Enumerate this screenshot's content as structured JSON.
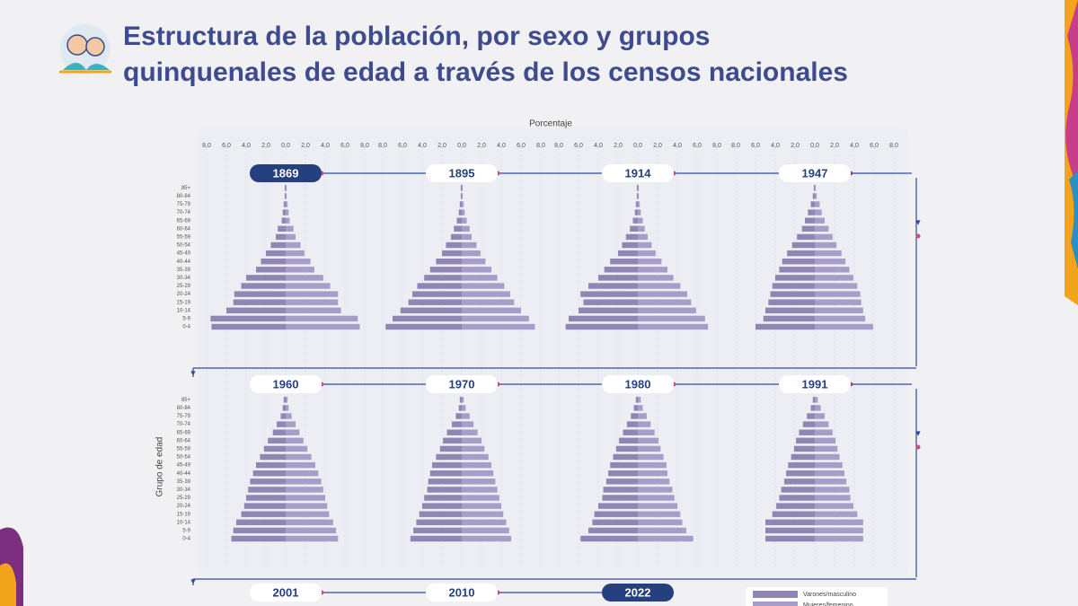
{
  "chart_data": {
    "type": "population-pyramid",
    "title": [
      "Estructura de la población, por sexo y grupos",
      "quinquenales de edad a través de los censos nacionales"
    ],
    "xlabel": "Porcentaje",
    "ylabel": "Grupo de edad",
    "categories": [
      "0-4",
      "5-9",
      "10-14",
      "15-19",
      "20-24",
      "25-29",
      "30-34",
      "35-39",
      "40-44",
      "45-49",
      "50-54",
      "55-59",
      "60-64",
      "65-69",
      "70-74",
      "75-79",
      "80-84",
      "85+"
    ],
    "xlim": [
      -8,
      8
    ],
    "xticks": [
      {
        "value": -8,
        "label": "8,0"
      },
      {
        "value": -6,
        "label": "6,0"
      },
      {
        "value": -4,
        "label": "4,0"
      },
      {
        "value": -2,
        "label": "2,0"
      },
      {
        "value": 0,
        "label": "0,0"
      },
      {
        "value": 2,
        "label": "2,0"
      },
      {
        "value": 4,
        "label": "4,0"
      },
      {
        "value": 6,
        "label": "6,0"
      },
      {
        "value": 8,
        "label": "8,0"
      }
    ],
    "grid": true,
    "series": [
      {
        "name": "Varones/masculino",
        "color": "#8f86b4"
      },
      {
        "name": "Mujeres/femenino",
        "color": "#a79dc9"
      }
    ],
    "panels": [
      {
        "title": "1869",
        "values": [
          [
            7.5,
            7.6,
            6.0,
            5.3,
            5.2,
            4.5,
            4.0,
            3.0,
            2.5,
            2.0,
            1.5,
            1.0,
            0.8,
            0.4,
            0.3,
            0.2,
            0.1,
            0.1
          ],
          [
            7.5,
            7.3,
            5.6,
            5.3,
            5.3,
            4.5,
            3.8,
            2.9,
            2.5,
            1.9,
            1.5,
            1.0,
            0.8,
            0.4,
            0.3,
            0.2,
            0.1,
            0.1
          ]
        ]
      },
      {
        "title": "1895",
        "values": [
          [
            7.7,
            7.0,
            6.2,
            5.4,
            5.0,
            4.5,
            3.8,
            3.2,
            2.6,
            2.0,
            1.6,
            1.1,
            0.8,
            0.5,
            0.3,
            0.2,
            0.1,
            0.1
          ],
          [
            7.4,
            6.8,
            6.0,
            5.3,
            4.9,
            4.3,
            3.6,
            3.0,
            2.4,
            1.9,
            1.5,
            1.0,
            0.8,
            0.5,
            0.3,
            0.2,
            0.1,
            0.1
          ]
        ]
      },
      {
        "title": "1914",
        "values": [
          [
            7.3,
            7.0,
            6.0,
            5.5,
            5.8,
            5.0,
            4.0,
            3.4,
            2.8,
            2.0,
            1.6,
            1.2,
            0.8,
            0.5,
            0.3,
            0.2,
            0.1,
            0.1
          ],
          [
            7.1,
            6.8,
            5.9,
            5.4,
            5.0,
            4.3,
            3.6,
            3.0,
            2.4,
            1.8,
            1.4,
            1.0,
            0.7,
            0.5,
            0.3,
            0.2,
            0.1,
            0.1
          ]
        ]
      },
      {
        "title": "1947",
        "values": [
          [
            6.0,
            5.2,
            5.0,
            4.7,
            4.5,
            4.3,
            4.0,
            3.6,
            3.3,
            2.8,
            2.3,
            1.8,
            1.3,
            1.0,
            0.7,
            0.4,
            0.2,
            0.1
          ],
          [
            5.9,
            5.1,
            4.9,
            4.7,
            4.6,
            4.3,
            3.9,
            3.5,
            3.1,
            2.7,
            2.2,
            1.8,
            1.4,
            1.0,
            0.7,
            0.5,
            0.2,
            0.1
          ]
        ]
      },
      {
        "title": "1960",
        "values": [
          [
            5.5,
            5.3,
            5.0,
            4.5,
            4.2,
            4.0,
            3.8,
            3.6,
            3.3,
            3.0,
            2.6,
            2.2,
            1.8,
            1.3,
            0.9,
            0.5,
            0.3,
            0.2
          ],
          [
            5.3,
            5.1,
            4.8,
            4.4,
            4.2,
            4.0,
            3.8,
            3.6,
            3.3,
            3.0,
            2.6,
            2.2,
            1.8,
            1.4,
            1.0,
            0.6,
            0.3,
            0.2
          ]
        ]
      },
      {
        "title": "1970",
        "values": [
          [
            5.2,
            4.9,
            4.6,
            4.3,
            4.0,
            3.8,
            3.5,
            3.4,
            3.2,
            3.0,
            2.6,
            2.2,
            1.9,
            1.5,
            1.0,
            0.6,
            0.3,
            0.2
          ],
          [
            5.0,
            4.8,
            4.5,
            4.2,
            4.0,
            3.8,
            3.6,
            3.4,
            3.2,
            3.0,
            2.7,
            2.3,
            2.0,
            1.6,
            1.2,
            0.8,
            0.4,
            0.2
          ]
        ]
      },
      {
        "title": "1980",
        "values": [
          [
            5.8,
            5.0,
            4.6,
            4.4,
            4.0,
            3.6,
            3.5,
            3.2,
            3.0,
            2.8,
            2.5,
            2.2,
            1.9,
            1.5,
            1.1,
            0.7,
            0.4,
            0.2
          ],
          [
            5.6,
            4.9,
            4.5,
            4.3,
            4.0,
            3.7,
            3.5,
            3.2,
            3.0,
            2.9,
            2.6,
            2.3,
            2.1,
            1.7,
            1.3,
            0.9,
            0.5,
            0.3
          ]
        ]
      },
      {
        "title": "1991",
        "values": [
          [
            5.0,
            5.0,
            5.0,
            4.3,
            3.9,
            3.6,
            3.4,
            3.1,
            2.9,
            2.7,
            2.4,
            2.1,
            1.9,
            1.6,
            1.2,
            0.8,
            0.4,
            0.2
          ],
          [
            4.9,
            4.9,
            4.9,
            4.3,
            3.9,
            3.6,
            3.5,
            3.2,
            3.0,
            2.8,
            2.5,
            2.3,
            2.1,
            1.8,
            1.4,
            1.0,
            0.6,
            0.3
          ]
        ]
      },
      {
        "title": "2001"
      },
      {
        "title": "2010"
      },
      {
        "title": "2022"
      }
    ]
  }
}
